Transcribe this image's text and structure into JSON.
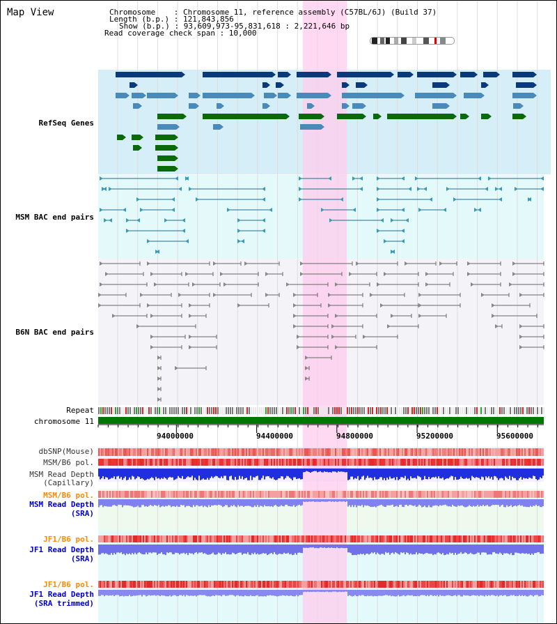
{
  "view": {
    "title": "Map View"
  },
  "info": {
    "chromosome_line": "Chromosome    : Chromosome 11, reference assembly (C57BL/6J) (Build 37)",
    "length_line": "Length (b.p.) : 121,843,856",
    "show_line": "Show (b.p.) : 93,609,973-95,831,618 : 2,221,646 bp",
    "coverage_line": "Read coverage check span : 10,000"
  },
  "tracks": {
    "refseq": {
      "label": "RefSeq Genes",
      "color": "#0000aa"
    },
    "msm_bac": {
      "label": "MSM BAC end pairs",
      "color": "#006688"
    },
    "b6n_bac": {
      "label": "B6N BAC end pairs",
      "color": "#444444"
    },
    "repeat": {
      "label": "Repeat"
    },
    "chromosome": {
      "label": "chromosome 11",
      "color": "#007700"
    },
    "dbsnp": {
      "label": "dbSNP(Mouse)"
    },
    "msm_pol": {
      "label": "MSM/B6 pol."
    },
    "msm_depth_cap": {
      "label1": "MSM Read Depth",
      "label2": "(Capillary)"
    },
    "msm_pol_sra": {
      "label": "MSM/B6 pol.",
      "color": "#ff8800"
    },
    "msm_depth_sra": {
      "label1": "MSM Read Depth",
      "label2": "(SRA)",
      "color": "#0000cc"
    },
    "jf1_pol": {
      "label": "JF1/B6 pol.",
      "color": "#ff8800"
    },
    "jf1_depth": {
      "label1": "JF1 Read Depth",
      "label2": "(SRA)",
      "color": "#0000cc"
    },
    "jf1_pol2": {
      "label": "JF1/B6 pol.",
      "color": "#ff8800"
    },
    "jf1_depth_trim": {
      "label1": "JF1 Read Depth",
      "label2": "(SRA trimmed)",
      "color": "#0000cc"
    }
  },
  "axis": {
    "ticks": [
      "94000000",
      "94400000",
      "94800000",
      "95200000",
      "95600000"
    ],
    "start_bp": 93609973,
    "end_bp": 95831618
  },
  "highlight": {
    "start_bp": 94630000,
    "end_bp": 94850000
  },
  "colors": {
    "refseq_bg": "#d6eef8",
    "msm_bg": "#e4fafa",
    "b6n_bg": "#f4f4f8",
    "highlight": "#ffccee",
    "gene_dark": "#0b3a7a",
    "gene_mid": "#4a8ab8",
    "gene_green": "#0a6a0a",
    "depth_blue": "#2233dd",
    "depth_light": "#8888ee",
    "snp_red": "#ee3333"
  }
}
